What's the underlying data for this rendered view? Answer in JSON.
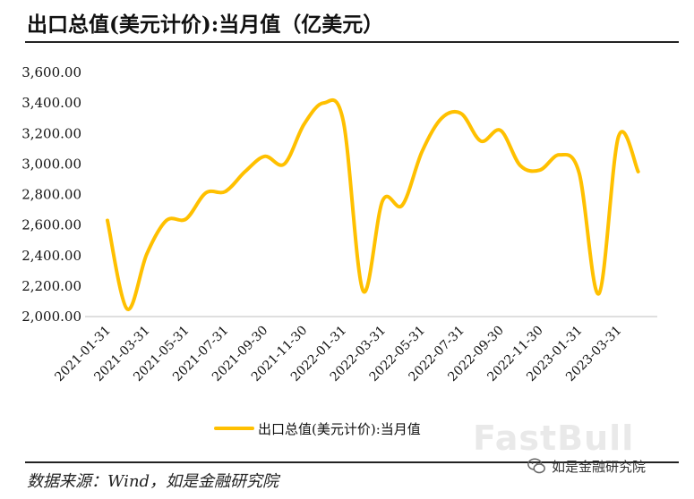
{
  "title": "出口总值(美元计价):当月值（亿美元）",
  "source": "数据来源：Wind，如是金融研究院",
  "brand": "如是金融研究院",
  "watermark": "FastBull",
  "chart_data": {
    "type": "line",
    "title": "出口总值(美元计价):当月值（亿美元）",
    "ylim": [
      2000,
      3600
    ],
    "yticks": [
      "2,000.00",
      "2,200.00",
      "2,400.00",
      "2,600.00",
      "2,800.00",
      "3,000.00",
      "3,200.00",
      "3,400.00",
      "3,600.00"
    ],
    "ytick_values": [
      2000,
      2200,
      2400,
      2600,
      2800,
      3000,
      3200,
      3400,
      3600
    ],
    "xticks": [
      "2021-01-31",
      "2021-03-31",
      "2021-05-31",
      "2021-07-31",
      "2021-09-30",
      "2021-11-30",
      "2022-01-31",
      "2022-03-31",
      "2022-05-31",
      "2022-07-31",
      "2022-09-30",
      "2022-11-30",
      "2023-01-31",
      "2023-03-31"
    ],
    "x": [
      "2021-01-31",
      "2021-02-28",
      "2021-03-31",
      "2021-04-30",
      "2021-05-31",
      "2021-06-30",
      "2021-07-31",
      "2021-08-31",
      "2021-09-30",
      "2021-10-31",
      "2021-11-30",
      "2021-12-31",
      "2022-01-31",
      "2022-02-28",
      "2022-03-31",
      "2022-04-30",
      "2022-05-31",
      "2022-06-30",
      "2022-07-31",
      "2022-08-31",
      "2022-09-30",
      "2022-10-31",
      "2022-11-30",
      "2022-12-31",
      "2023-01-31",
      "2023-02-28",
      "2023-03-31",
      "2023-04-30"
    ],
    "series": [
      {
        "name": "出口总值(美元计价):当月值",
        "color": "#FFC000",
        "values": [
          2630,
          2050,
          2410,
          2630,
          2640,
          2810,
          2820,
          2950,
          3050,
          3000,
          3260,
          3400,
          3280,
          2170,
          2760,
          2730,
          3080,
          3300,
          3330,
          3150,
          3220,
          2990,
          2960,
          3060,
          2940,
          2150,
          3180,
          2950
        ]
      }
    ],
    "grid": false,
    "legend": "bottom-center"
  }
}
